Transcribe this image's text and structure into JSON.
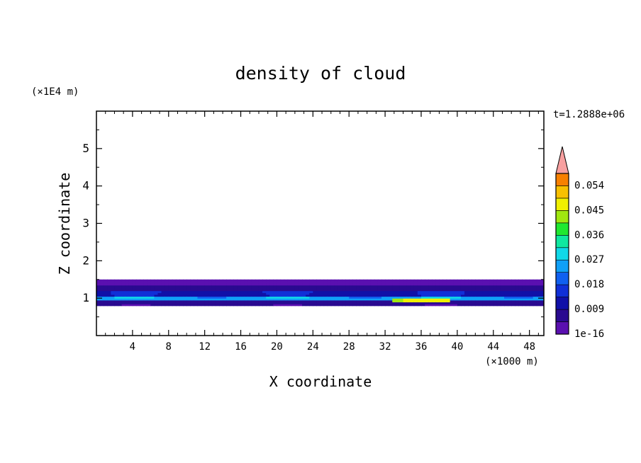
{
  "chart_data": {
    "type": "heatmap",
    "title": "density of cloud",
    "xlabel": "X coordinate",
    "ylabel": "Z coordinate",
    "x_unit": "(×1000 m)",
    "y_unit": "(×1E4 m)",
    "time_label": "t=1.2888e+06",
    "xlim": [
      0,
      49.6
    ],
    "ylim": [
      0,
      6
    ],
    "x_ticks": [
      4,
      8,
      12,
      16,
      20,
      24,
      28,
      32,
      36,
      40,
      44,
      48
    ],
    "x_tick_labels": [
      "4",
      "8",
      "12",
      "16",
      "20",
      "24",
      "28",
      "32",
      "36",
      "40",
      "44",
      "48"
    ],
    "y_ticks": [
      1,
      2,
      3,
      4,
      5
    ],
    "y_tick_labels": [
      "1",
      "2",
      "3",
      "4",
      "5"
    ],
    "colorbar": {
      "levels": [
        1e-16,
        0.0045,
        0.009,
        0.0135,
        0.018,
        0.0225,
        0.027,
        0.0315,
        0.036,
        0.0405,
        0.045,
        0.0495,
        0.054,
        0.0585
      ],
      "colors": [
        "#5a10b0",
        "#2a0a90",
        "#1010a8",
        "#1030d8",
        "#1060f0",
        "#10a0f8",
        "#10d8e8",
        "#10e8a0",
        "#20e830",
        "#a0e810",
        "#f0f000",
        "#f8c000",
        "#f88000",
        "#f03010",
        "#f8a0a0"
      ],
      "tick_values": [
        1e-16,
        0.009,
        0.018,
        0.027,
        0.036,
        0.045,
        0.054
      ],
      "tick_labels": [
        "1e-16",
        "0.009",
        "0.018",
        "0.027",
        "0.036",
        "0.045",
        "0.054"
      ],
      "extend": "max"
    },
    "field_description": "cloud density layer concentrated near Z≈0.8–1.5 (×1E4 m), maximum near X≈34–38 (×1000 m)",
    "layers": [
      {
        "z_range": [
          0.8,
          0.95
        ],
        "x_range": [
          0,
          49.6
        ],
        "value": 0.005
      },
      {
        "z_range": [
          0.95,
          1.05
        ],
        "x_range": [
          0,
          49.6
        ],
        "value": 0.025
      },
      {
        "z_range": [
          1.05,
          1.2
        ],
        "x_range": [
          0,
          49.6
        ],
        "value": 0.012
      },
      {
        "z_range": [
          1.2,
          1.35
        ],
        "x_range": [
          0,
          49.6
        ],
        "value": 0.006
      },
      {
        "z_range": [
          1.35,
          1.5
        ],
        "x_range": [
          0,
          49.6
        ],
        "value": 0.002
      },
      {
        "z_range": [
          0.92,
          1.0
        ],
        "x_range": [
          33,
          39
        ],
        "value": 0.045
      }
    ]
  }
}
